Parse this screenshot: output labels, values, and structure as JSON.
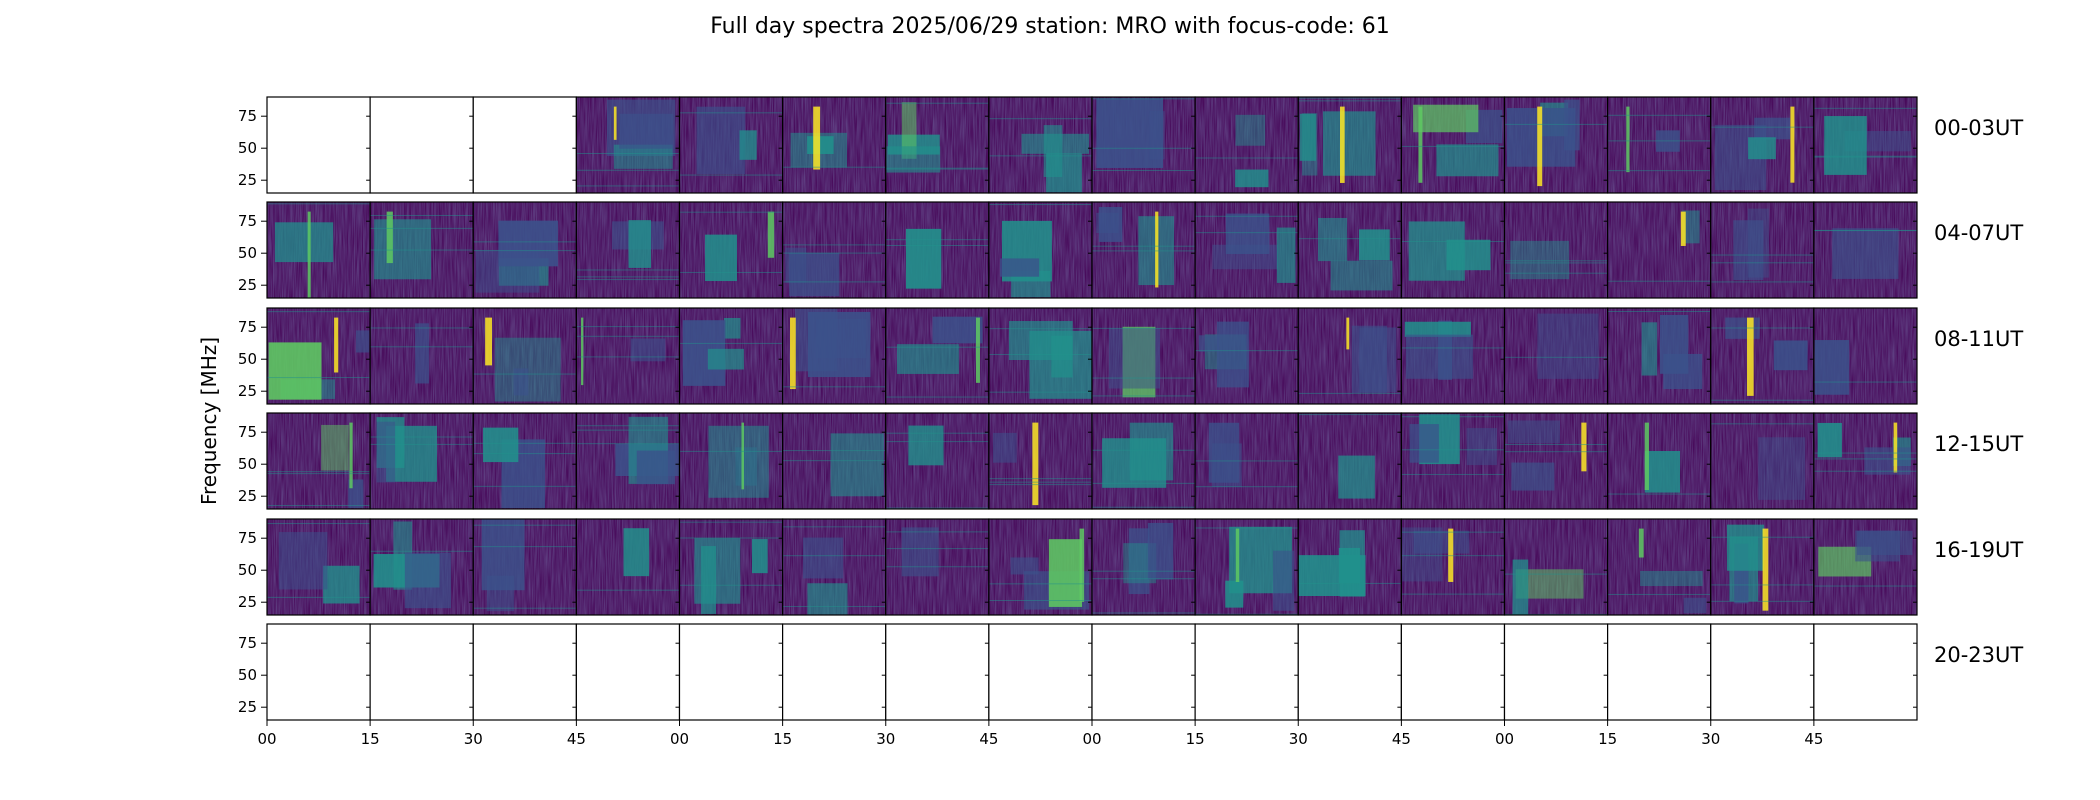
{
  "chart_data": {
    "type": "heatmap",
    "title": "Full day spectra 2025/06/29 station: MRO with focus-code: 61",
    "ylabel": "Frequency [MHz]",
    "xlabel": "",
    "ylim": [
      15,
      90
    ],
    "y_ticks": [
      "25",
      "50",
      "75"
    ],
    "y_tick_values": [
      25,
      50,
      75
    ],
    "x_tick_labels": [
      "00",
      "15",
      "30",
      "45",
      "00",
      "15",
      "30",
      "45",
      "00",
      "15",
      "30",
      "45",
      "00",
      "15",
      "30",
      "45"
    ],
    "panels_per_row": 16,
    "panel_minutes": 15,
    "rows": [
      {
        "label": "00-03UT",
        "panels": [
          0,
          0,
          0,
          1,
          1,
          1,
          1,
          1,
          1,
          1,
          1,
          1,
          1,
          1,
          1,
          1
        ]
      },
      {
        "label": "04-07UT",
        "panels": [
          1,
          1,
          1,
          1,
          1,
          1,
          1,
          1,
          1,
          1,
          1,
          1,
          1,
          1,
          1,
          1
        ]
      },
      {
        "label": "08-11UT",
        "panels": [
          1,
          1,
          1,
          1,
          1,
          1,
          1,
          1,
          1,
          1,
          1,
          1,
          1,
          1,
          1,
          1
        ]
      },
      {
        "label": "12-15UT",
        "panels": [
          1,
          1,
          1,
          1,
          1,
          1,
          1,
          1,
          1,
          1,
          1,
          1,
          1,
          1,
          1,
          1
        ]
      },
      {
        "label": "16-19UT",
        "panels": [
          1,
          1,
          1,
          1,
          1,
          1,
          1,
          1,
          1,
          1,
          1,
          1,
          1,
          1,
          1,
          1
        ]
      },
      {
        "label": "20-23UT",
        "panels": [
          0,
          0,
          0,
          0,
          0,
          0,
          0,
          0,
          0,
          0,
          0,
          0,
          0,
          0,
          0,
          0
        ]
      }
    ],
    "colormap": [
      "#440154",
      "#3b528b",
      "#21918c",
      "#5ec962",
      "#fde725"
    ],
    "empty_panel_color": "#ffffff",
    "grid": false,
    "legend": "none"
  }
}
